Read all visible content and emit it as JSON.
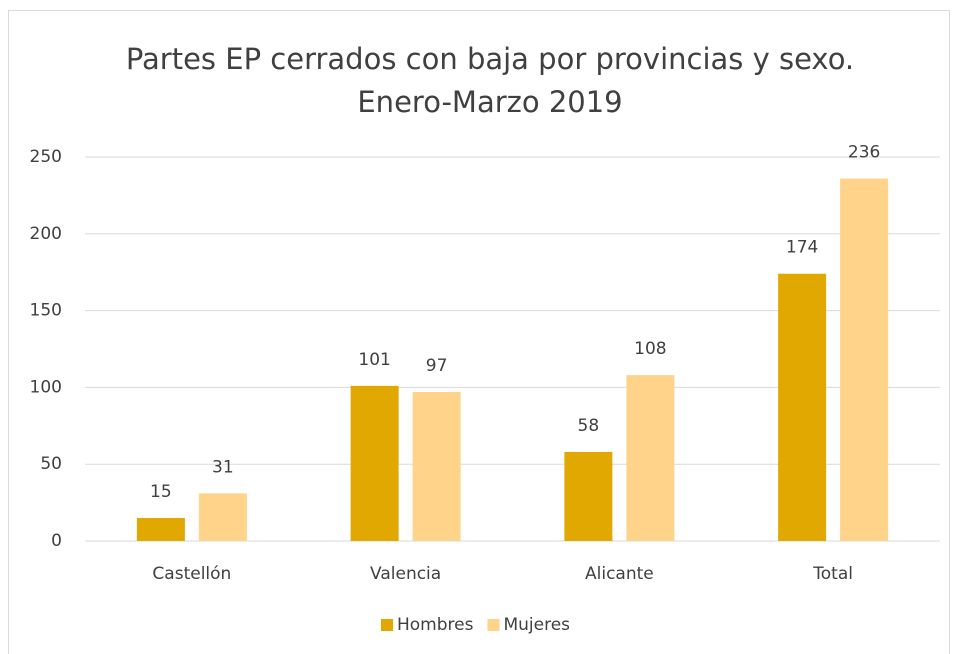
{
  "chart_data": {
    "type": "bar",
    "title": [
      "Partes EP cerrados con baja por provincias y sexo.",
      "Enero-Marzo 2019"
    ],
    "categories": [
      "Castellón",
      "Valencia",
      "Alicante",
      "Total"
    ],
    "series": [
      {
        "name": "Hombres",
        "color": "#e0a800",
        "values": [
          15,
          101,
          58,
          174
        ]
      },
      {
        "name": "Mujeres",
        "color": "#ffd38a",
        "values": [
          31,
          97,
          108,
          236
        ]
      }
    ],
    "ylim": [
      0,
      250
    ],
    "yticks": [
      0,
      50,
      100,
      150,
      200,
      250
    ],
    "grid": true,
    "legend": "bottom"
  }
}
